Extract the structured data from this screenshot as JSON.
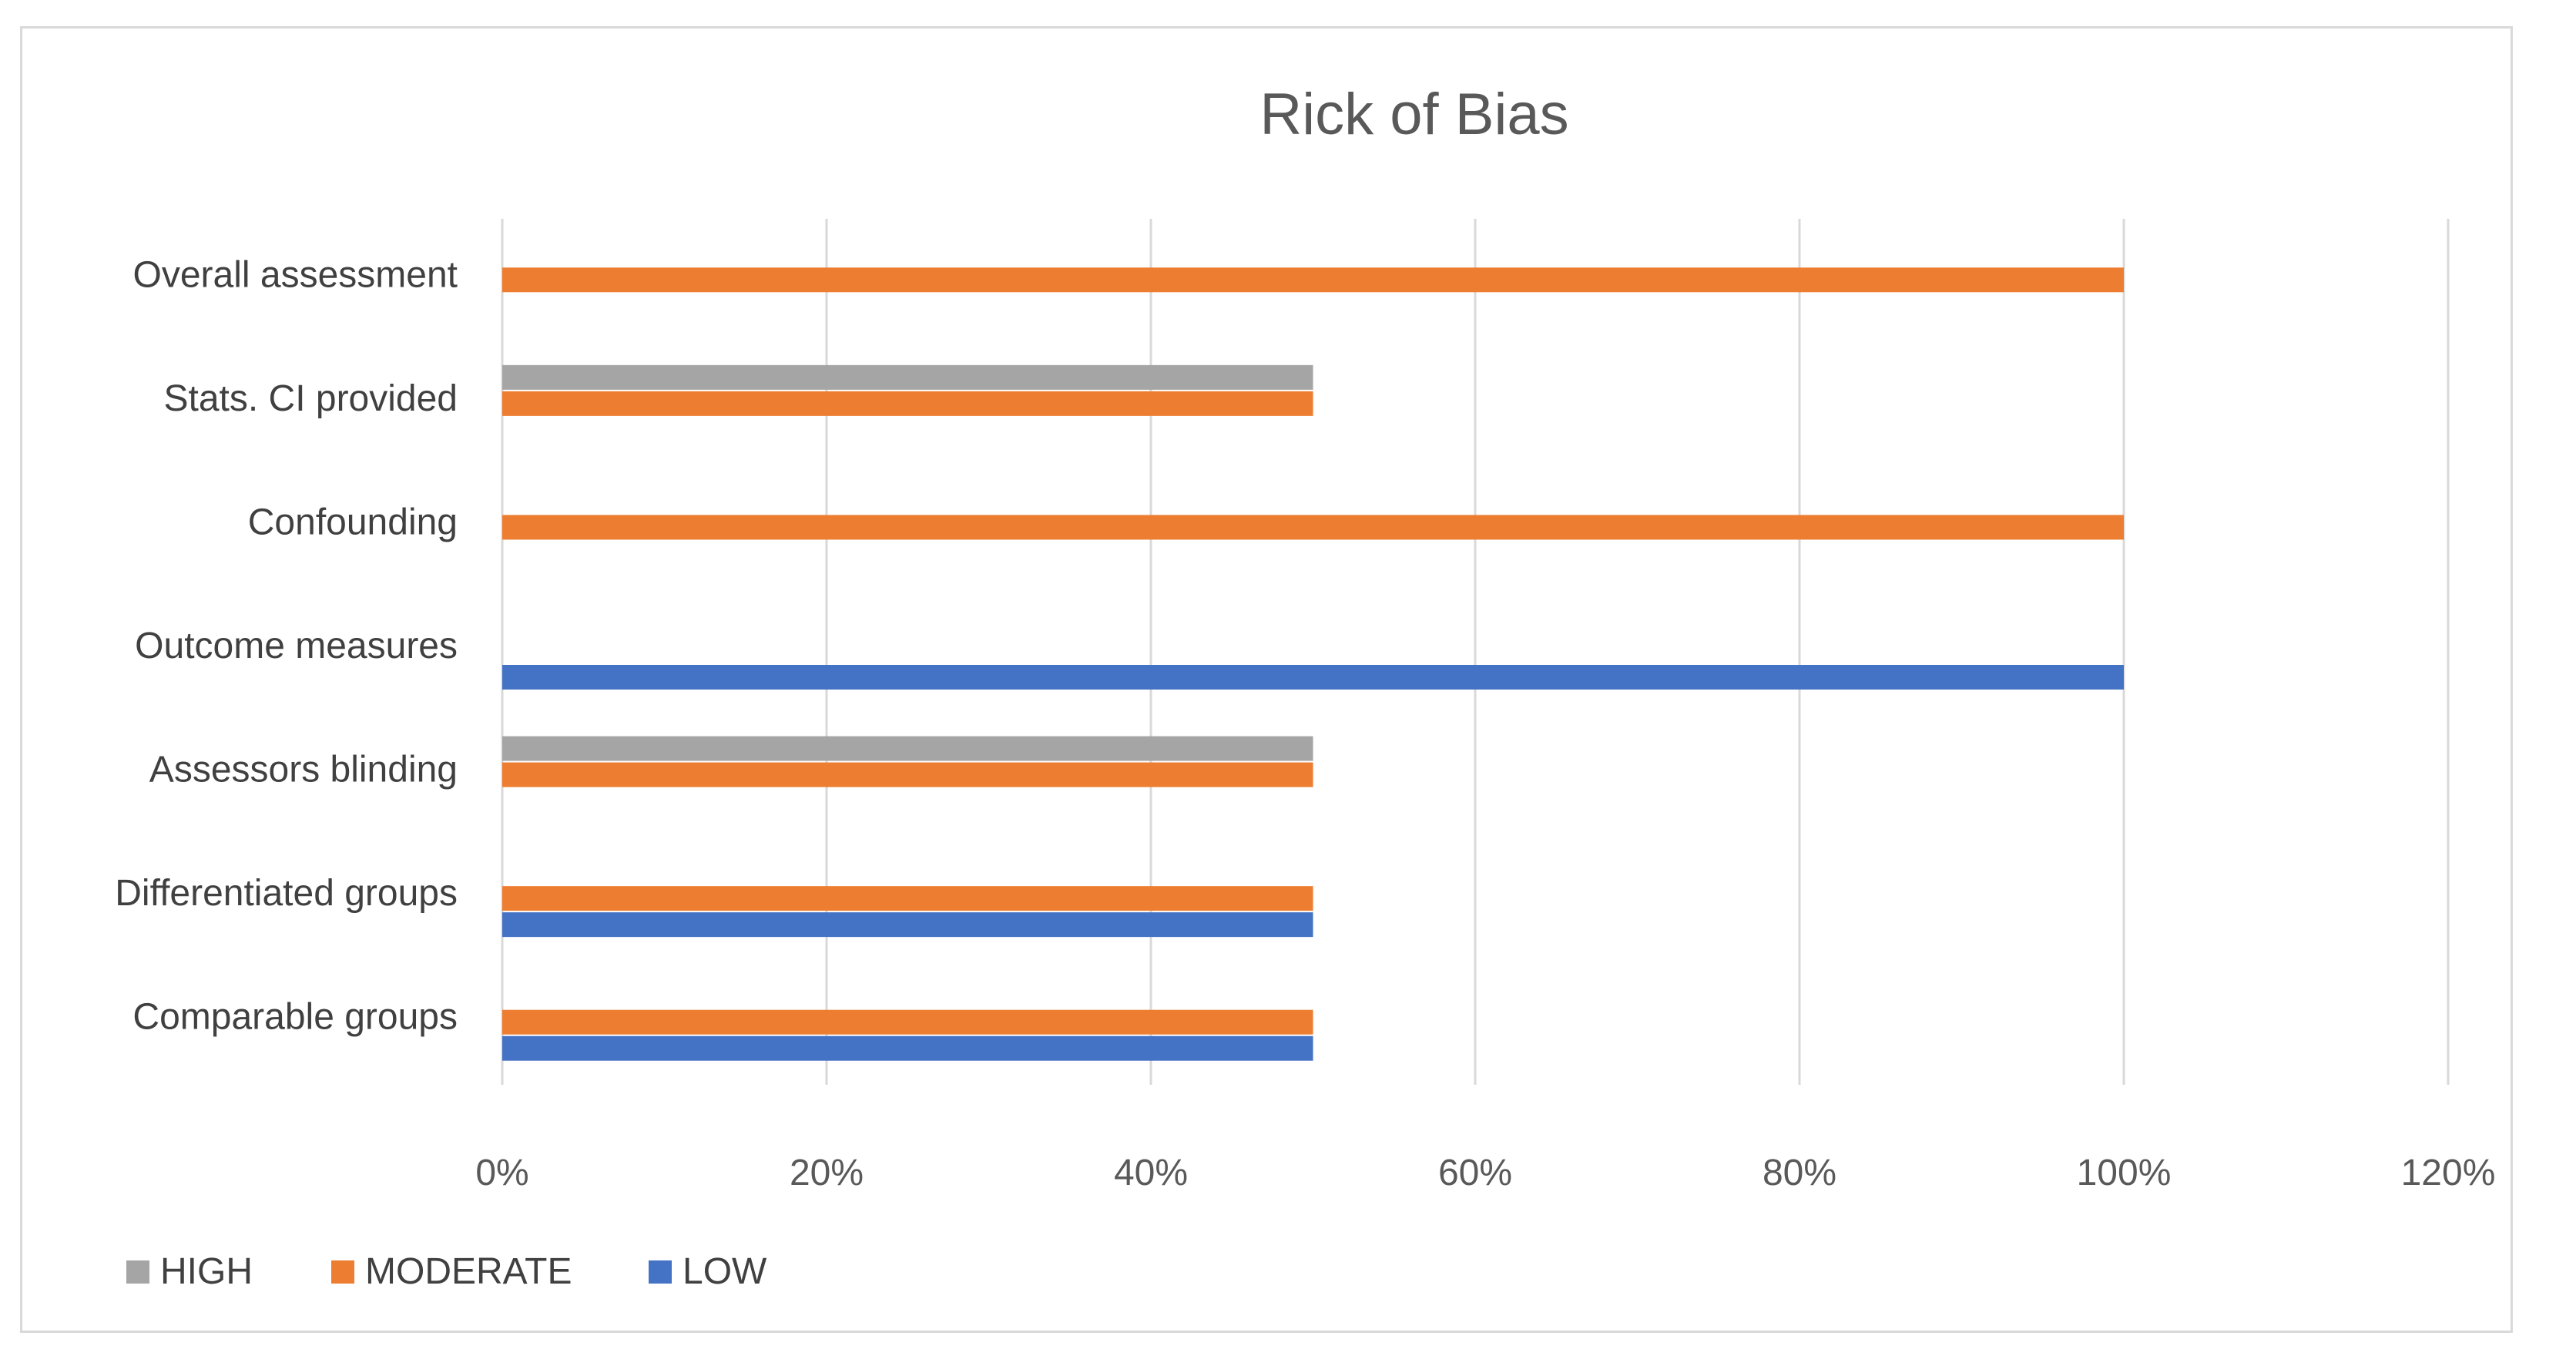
{
  "chart_data": {
    "type": "bar",
    "orientation": "horizontal",
    "title": "Rick of Bias",
    "xlabel": "",
    "ylabel": "",
    "categories": [
      "Comparable groups",
      "Differentiated groups",
      "Assessors blinding",
      "Outcome measures",
      "Confounding",
      "Stats. CI provided",
      "Overall assessment"
    ],
    "series": [
      {
        "name": "HIGH",
        "color": "#a5a5a5",
        "values": [
          0,
          0,
          0.5,
          0,
          0,
          0.5,
          0
        ]
      },
      {
        "name": "MODERATE",
        "color": "#ed7d31",
        "values": [
          0.5,
          0.5,
          0.5,
          0,
          1.0,
          0.5,
          1.0
        ]
      },
      {
        "name": "LOW",
        "color": "#4472c4",
        "values": [
          0.5,
          0.5,
          0,
          1.0,
          0,
          0,
          0
        ]
      }
    ],
    "xlim": [
      0,
      1.2
    ],
    "xticks": [
      0,
      0.2,
      0.4,
      0.6,
      0.8,
      1.0,
      1.2
    ],
    "xtick_labels": [
      "0%",
      "20%",
      "40%",
      "60%",
      "80%",
      "100%",
      "120%"
    ],
    "grid": true,
    "legend_position": "bottom-left"
  }
}
